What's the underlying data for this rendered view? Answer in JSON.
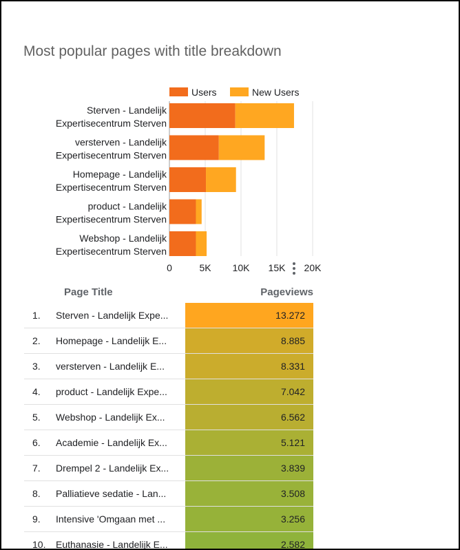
{
  "title": "Most popular pages with title breakdown",
  "colors": {
    "users": "#f26c1c",
    "new_users": "#ffa721",
    "grid": "#e0e0e0",
    "heat_high": "#ffa61f",
    "heat_low": "#8fb33b"
  },
  "chart_data": [
    {
      "type": "bar",
      "orientation": "horizontal",
      "stacked": true,
      "categories": [
        [
          "Sterven - Landelijk",
          "Expertisecentrum Sterven"
        ],
        [
          "versterven - Landelijk",
          "Expertisecentrum Sterven"
        ],
        [
          "Homepage - Landelijk",
          "Expertisecentrum Sterven"
        ],
        [
          "product - Landelijk",
          "Expertisecentrum Sterven"
        ],
        [
          "Webshop - Landelijk",
          "Expertisecentrum Sterven"
        ]
      ],
      "series": [
        {
          "name": "Users",
          "values": [
            9200,
            6900,
            5100,
            3700,
            3700
          ]
        },
        {
          "name": "New Users",
          "values": [
            8200,
            6400,
            4200,
            800,
            1500
          ]
        }
      ],
      "xlim": [
        0,
        20000
      ],
      "xticks": [
        "0",
        "5K",
        "10K",
        "15K",
        "20K"
      ],
      "legend": "top",
      "grid": true
    },
    {
      "type": "table",
      "columns": [
        "Page Title",
        "Pageviews"
      ],
      "rows": [
        {
          "rank": "1.",
          "title": "Sterven - Landelijk Expe...",
          "views": "13.272",
          "value": 13272
        },
        {
          "rank": "2.",
          "title": "Homepage - Landelijk E...",
          "views": "8.885",
          "value": 8885
        },
        {
          "rank": "3.",
          "title": "versterven - Landelijk E...",
          "views": "8.331",
          "value": 8331
        },
        {
          "rank": "4.",
          "title": "product - Landelijk Expe...",
          "views": "7.042",
          "value": 7042
        },
        {
          "rank": "5.",
          "title": "Webshop - Landelijk Ex...",
          "views": "6.562",
          "value": 6562
        },
        {
          "rank": "6.",
          "title": "Academie - Landelijk Ex...",
          "views": "5.121",
          "value": 5121
        },
        {
          "rank": "7.",
          "title": "Drempel 2 - Landelijk Ex...",
          "views": "3.839",
          "value": 3839
        },
        {
          "rank": "8.",
          "title": "Palliatieve sedatie - Lan...",
          "views": "3.508",
          "value": 3508
        },
        {
          "rank": "9.",
          "title": "Intensive 'Omgaan met ...",
          "views": "3.256",
          "value": 3256
        },
        {
          "rank": "10.",
          "title": "Euthanasie - Landelijk E...",
          "views": "2.582",
          "value": 2582
        }
      ]
    }
  ]
}
